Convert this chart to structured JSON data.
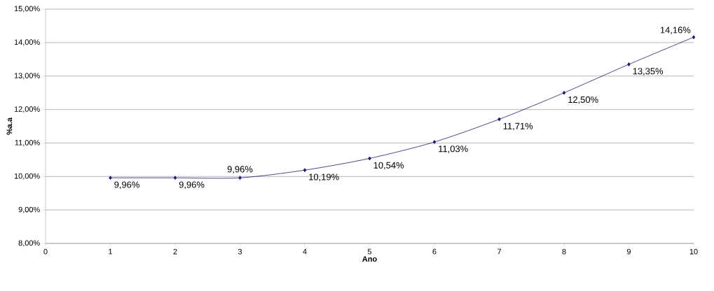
{
  "chart_data": {
    "type": "line",
    "xlabel": "Ano",
    "ylabel": "%a.a",
    "x": [
      1,
      2,
      3,
      4,
      5,
      6,
      7,
      8,
      9,
      10
    ],
    "series": [
      {
        "color": "#1f1a6b",
        "values": [
          9.96,
          9.96,
          9.96,
          10.19,
          10.54,
          11.03,
          11.71,
          12.5,
          13.35,
          14.16
        ],
        "value_labels": [
          "9,96%",
          "9,96%",
          "9,96%",
          "10,19%",
          "10,54%",
          "11,03%",
          "11,71%",
          "12,50%",
          "13,35%",
          "14,16%"
        ]
      }
    ],
    "xlim": [
      0,
      10
    ],
    "xticks": [
      0,
      1,
      2,
      3,
      4,
      5,
      6,
      7,
      8,
      9,
      10
    ],
    "ylim": [
      8,
      15
    ],
    "yticks": [
      {
        "value": 8,
        "label": "8,00%"
      },
      {
        "value": 9,
        "label": "9,00%"
      },
      {
        "value": 10,
        "label": "10,00%"
      },
      {
        "value": 11,
        "label": "11,00%"
      },
      {
        "value": 12,
        "label": "12,00%"
      },
      {
        "value": 13,
        "label": "13,00%"
      },
      {
        "value": 14,
        "label": "14,00%"
      },
      {
        "value": 15,
        "label": "15,00%"
      }
    ],
    "grid": "y",
    "marker": "diamond",
    "line_style": "solid"
  }
}
